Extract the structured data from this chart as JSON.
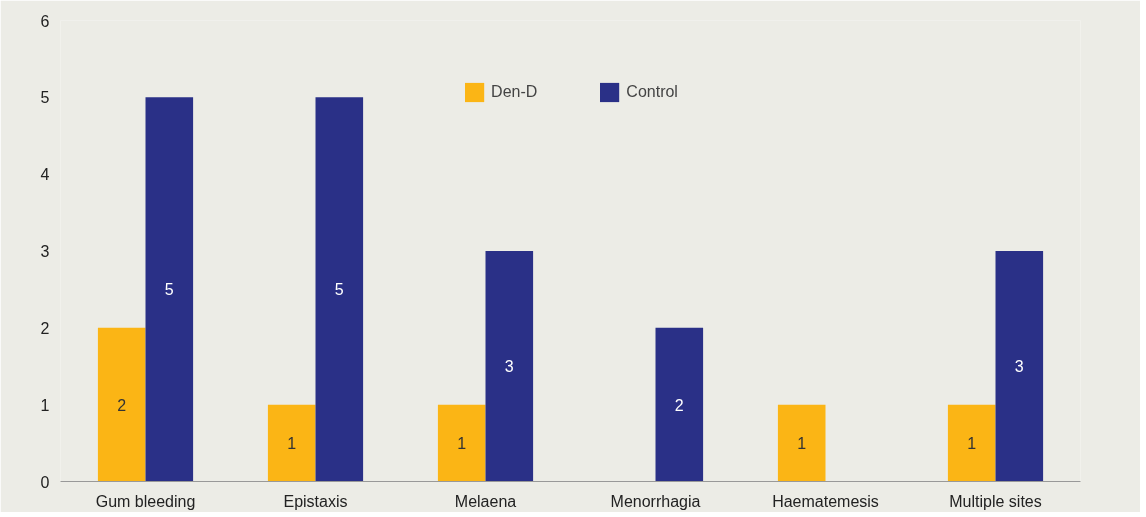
{
  "chart_data": {
    "type": "bar",
    "categories": [
      "Gum bleeding",
      "Epistaxis",
      "Melaena",
      "Menorrhagia",
      "Haematemesis",
      "Multiple sites"
    ],
    "series": [
      {
        "name": "Den-D",
        "color": "#fbb515",
        "values": [
          2,
          1,
          1,
          null,
          1,
          1
        ]
      },
      {
        "name": "Control",
        "color": "#2a3087",
        "values": [
          5,
          5,
          3,
          2,
          null,
          3
        ]
      }
    ],
    "ylim": [
      0,
      6
    ],
    "yticks": [
      0,
      1,
      2,
      3,
      4,
      5,
      6
    ],
    "grid": false,
    "legend": "top",
    "data_labels": true
  }
}
